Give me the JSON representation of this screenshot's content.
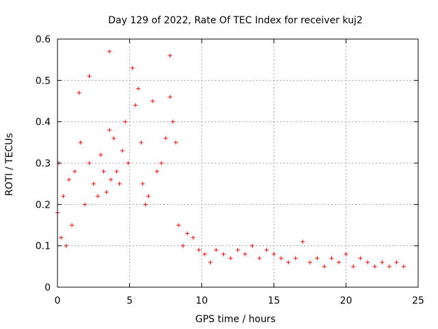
{
  "chart_data": {
    "type": "scatter",
    "title": "Day 129 of 2022, Rate Of TEC Index for receiver kuj2",
    "xlabel": "GPS time / hours",
    "ylabel": "ROTI / TECUs",
    "xlim": [
      0,
      25
    ],
    "ylim": [
      0,
      0.6
    ],
    "xticks": [
      "0",
      "5",
      "10",
      "15",
      "20",
      "25"
    ],
    "yticks": [
      "0",
      "0.1",
      "0.2",
      "0.3",
      "0.4",
      "0.5",
      "0.6"
    ],
    "grid": true,
    "marker": "plus",
    "marker_color": "#ff0000",
    "series": [
      {
        "name": "ROTI",
        "x": [
          0.0,
          0.1,
          0.25,
          0.4,
          0.6,
          0.8,
          1.0,
          1.2,
          1.5,
          1.6,
          1.9,
          2.2,
          2.2,
          2.5,
          2.8,
          3.0,
          3.2,
          3.4,
          3.6,
          3.6,
          3.7,
          3.9,
          4.1,
          4.3,
          4.5,
          4.7,
          4.9,
          5.2,
          5.4,
          5.6,
          5.8,
          5.9,
          6.1,
          6.3,
          6.6,
          6.9,
          7.2,
          7.5,
          7.8,
          7.8,
          8.0,
          8.2,
          8.4,
          8.7,
          9.0,
          9.4,
          9.8,
          10.2,
          10.6,
          11.0,
          11.5,
          12.0,
          12.5,
          13.0,
          13.5,
          14.0,
          14.5,
          15.0,
          15.5,
          16.0,
          16.5,
          17.0,
          17.5,
          18.0,
          18.5,
          19.0,
          19.5,
          20.0,
          20.5,
          21.0,
          21.5,
          22.0,
          22.5,
          23.0,
          23.5,
          24.0
        ],
        "y": [
          0.18,
          0.3,
          0.12,
          0.22,
          0.1,
          0.26,
          0.15,
          0.28,
          0.47,
          0.35,
          0.2,
          0.51,
          0.3,
          0.25,
          0.22,
          0.32,
          0.28,
          0.23,
          0.57,
          0.38,
          0.26,
          0.36,
          0.28,
          0.25,
          0.33,
          0.4,
          0.3,
          0.53,
          0.44,
          0.48,
          0.35,
          0.25,
          0.2,
          0.22,
          0.45,
          0.28,
          0.3,
          0.36,
          0.56,
          0.46,
          0.4,
          0.35,
          0.15,
          0.1,
          0.13,
          0.12,
          0.09,
          0.08,
          0.06,
          0.09,
          0.08,
          0.07,
          0.09,
          0.08,
          0.1,
          0.07,
          0.09,
          0.08,
          0.07,
          0.06,
          0.07,
          0.11,
          0.06,
          0.07,
          0.05,
          0.07,
          0.06,
          0.08,
          0.05,
          0.07,
          0.06,
          0.05,
          0.06,
          0.05,
          0.06,
          0.05
        ]
      }
    ]
  }
}
